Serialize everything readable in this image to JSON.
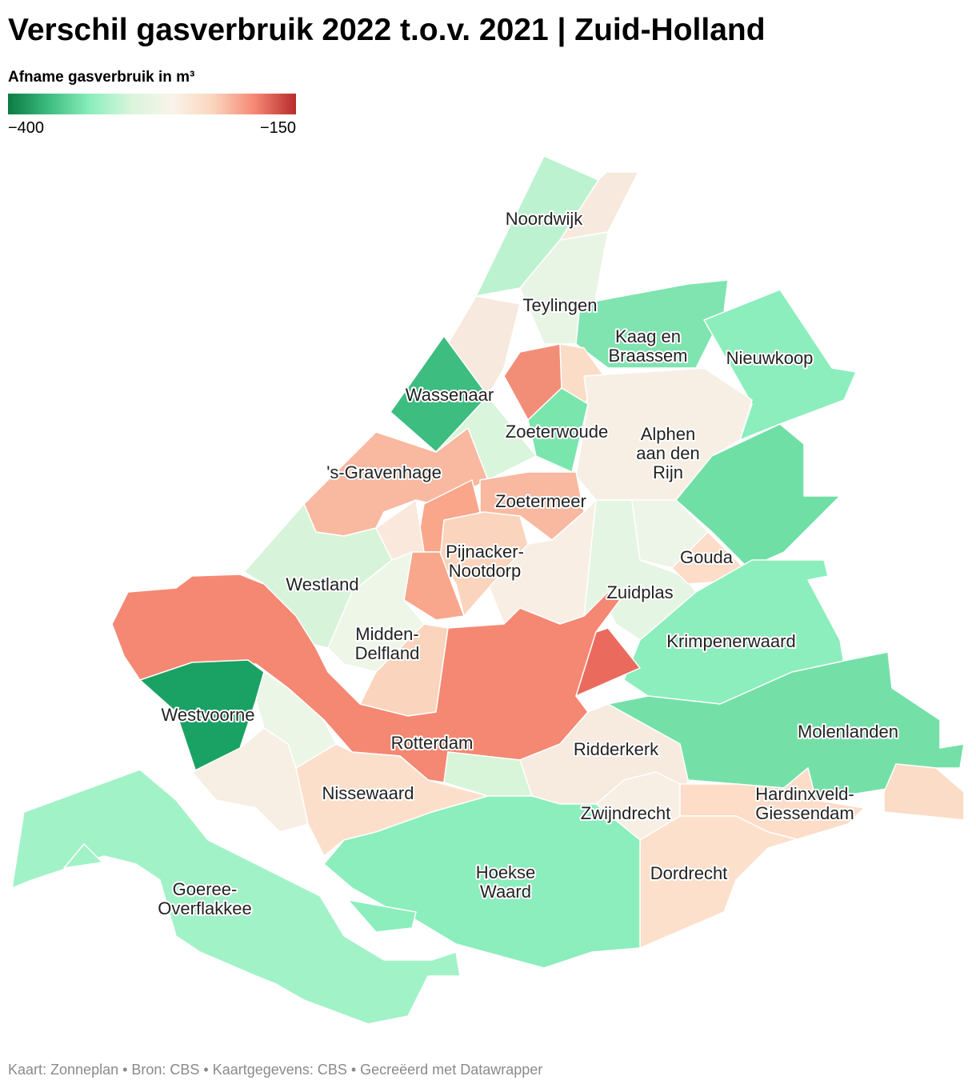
{
  "header": {
    "title": "Verschil gasverbruik 2022 t.o.v. 2021 | Zuid-Holland",
    "legend_title": "Afname gasverbruik in m³",
    "legend_min": "−400",
    "legend_max": "−150",
    "legend_colors": [
      "#0b7a43",
      "#3dbd7f",
      "#8beebc",
      "#d9f5dc",
      "#faf3e9",
      "#fbd4bd",
      "#f58873",
      "#b82b2b"
    ]
  },
  "regions": [
    {
      "label_lines": [
        "Noordwijk"
      ],
      "color": "#bdf2d0"
    },
    {
      "label_lines": [
        "Teylingen"
      ],
      "color": "#e9f5e4"
    },
    {
      "label_lines": [
        "Kaag en",
        "Braassem"
      ],
      "color": "#7fe4b0"
    },
    {
      "label_lines": [
        "Nieuwkoop"
      ],
      "color": "#8beebc"
    },
    {
      "label_lines": [
        "Wassenaar"
      ],
      "color": "#3dbd7f"
    },
    {
      "label_lines": [
        "Zoeterwoude"
      ],
      "color": "#7ae5ac"
    },
    {
      "label_lines": [
        "Alphen",
        "aan den",
        "Rijn"
      ],
      "color": "#f7efe4"
    },
    {
      "label_lines": [
        "'s-Gravenhage"
      ],
      "color": "#f9b8a0"
    },
    {
      "label_lines": [
        "Zoetermeer"
      ],
      "color": "#f9b8a0"
    },
    {
      "label_lines": [
        "Pijnacker-",
        "Nootdorp"
      ],
      "color": "#fbd4bd"
    },
    {
      "label_lines": [
        "Westland"
      ],
      "color": "#d7f4da"
    },
    {
      "label_lines": [
        "Gouda"
      ],
      "color": "#fddcc8"
    },
    {
      "label_lines": [
        "Zuidplas"
      ],
      "color": "#e5f5e3"
    },
    {
      "label_lines": [
        "Midden-",
        "Delfland"
      ],
      "color": "#eef6e8"
    },
    {
      "label_lines": [
        "Krimpenerwaard"
      ],
      "color": "#8beebc"
    },
    {
      "label_lines": [
        "Westvoorne"
      ],
      "color": "#1aa264"
    },
    {
      "label_lines": [
        "Molenlanden"
      ],
      "color": "#74e0a8"
    },
    {
      "label_lines": [
        "Rotterdam"
      ],
      "color": "#f58873"
    },
    {
      "label_lines": [
        "Ridderkerk"
      ],
      "color": "#f7eadf"
    },
    {
      "label_lines": [
        "Nissewaard"
      ],
      "color": "#fcdfcb"
    },
    {
      "label_lines": [
        "Hardinxveld-",
        "Giessendam"
      ],
      "color": "#fddcc8"
    },
    {
      "label_lines": [
        "Zwijndrecht"
      ],
      "color": "#f7efe4"
    },
    {
      "label_lines": [
        "Hoekse",
        "Waard"
      ],
      "color": "#8beebc"
    },
    {
      "label_lines": [
        "Dordrecht"
      ],
      "color": "#fde0cb"
    },
    {
      "label_lines": [
        "Goeree-",
        "Overflakkee"
      ],
      "color": "#a2f2c7"
    }
  ],
  "footer": "Kaart: Zonneplan • Bron: CBS • Kaartgegevens: CBS • Gecreëerd met Datawrapper"
}
